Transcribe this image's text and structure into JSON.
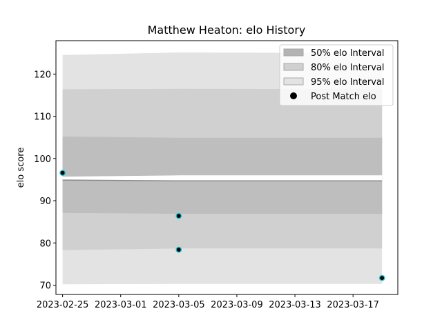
{
  "chart_data": {
    "type": "area",
    "title": "Matthew Heaton: elo History",
    "xlabel": "",
    "ylabel": "elo score",
    "x_ticks": [
      "2023-02-25",
      "2023-03-01",
      "2023-03-05",
      "2023-03-09",
      "2023-03-13",
      "2023-03-17"
    ],
    "y_ticks": [
      70,
      80,
      90,
      100,
      110,
      120
    ],
    "xlim": [
      "2023-02-24T13:00",
      "2023-03-20T02:00"
    ],
    "ylim": [
      67.8,
      127.9
    ],
    "grid": false,
    "legend_position": "top-right",
    "bands": [
      {
        "name": "95% elo Interval",
        "color": "#e3e3e3",
        "x": [
          "2023-02-25",
          "2023-03-05",
          "2023-03-19"
        ],
        "lower": [
          70.2,
          70.3,
          70.3
        ],
        "upper": [
          124.5,
          125.1,
          125.0
        ]
      },
      {
        "name": "80% elo Interval",
        "color": "#d0d0d0",
        "x": [
          "2023-02-25",
          "2023-03-05",
          "2023-03-19"
        ],
        "lower": [
          78.3,
          78.7,
          78.7
        ],
        "upper": [
          116.4,
          116.5,
          116.4
        ]
      },
      {
        "name": "50% elo Interval",
        "color": "#bebebe",
        "x": [
          "2023-02-25",
          "2023-03-05",
          "2023-03-19"
        ],
        "lower": [
          87.1,
          86.9,
          86.9
        ],
        "upper": [
          105.2,
          104.9,
          104.9
        ]
      }
    ],
    "mean_line": {
      "x": [
        "2023-02-25",
        "2023-03-05",
        "2023-03-19"
      ],
      "upper": [
        95.7,
        96.0,
        96.0
      ],
      "lower": [
        94.9,
        94.7,
        94.7
      ]
    },
    "series": [
      {
        "name": "Post Match elo",
        "type": "scatter",
        "color": "#000000",
        "edge_color": "#17becf",
        "points": [
          {
            "x": "2023-02-25",
            "y": 96.6
          },
          {
            "x": "2023-03-05",
            "y": 86.4
          },
          {
            "x": "2023-03-05",
            "y": 78.4
          },
          {
            "x": "2023-03-19",
            "y": 71.7
          }
        ]
      }
    ],
    "legend": [
      "50% elo Interval",
      "80% elo Interval",
      "95% elo Interval",
      "Post Match elo"
    ]
  }
}
